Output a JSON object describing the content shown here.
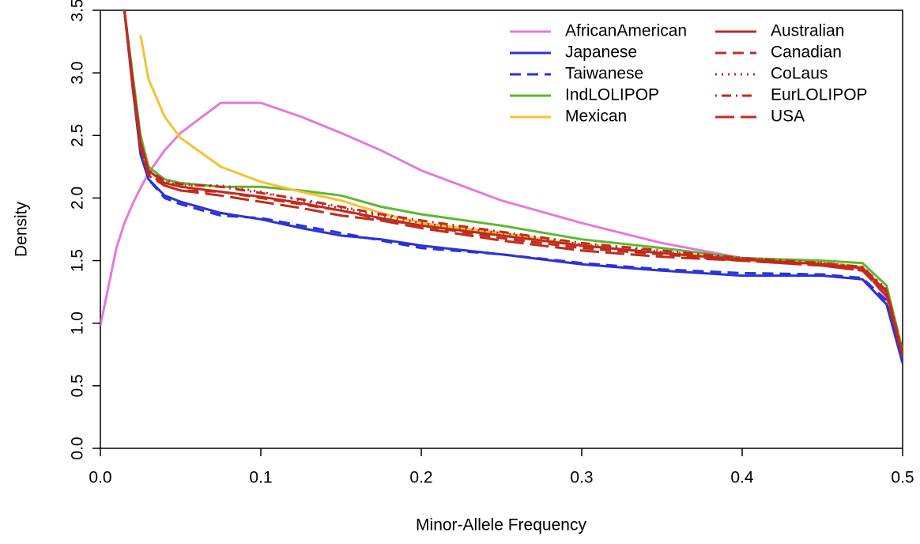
{
  "chart_data": {
    "type": "line",
    "xlabel": "Minor-Allele Frequency",
    "ylabel": "Density",
    "x": [
      0,
      0.01,
      0.015,
      0.02,
      0.025,
      0.03,
      0.04,
      0.05,
      0.075,
      0.1,
      0.125,
      0.15,
      0.175,
      0.2,
      0.25,
      0.3,
      0.35,
      0.4,
      0.45,
      0.475,
      0.49,
      0.5
    ],
    "xlim": [
      0,
      0.5
    ],
    "ylim": [
      0,
      3.5
    ],
    "xticks": [
      {
        "value": 0,
        "label": "0.0"
      },
      0.1,
      0.2,
      0.3,
      0.4,
      0.5
    ],
    "yticks": [
      {
        "value": 0,
        "label": "0.0"
      },
      0.5,
      {
        "value": 1,
        "label": "1.0"
      },
      1.5,
      {
        "value": 2,
        "label": "2.0"
      },
      2.5,
      {
        "value": 3,
        "label": "3.0"
      },
      3.5
    ],
    "legend": "top-right",
    "series": [
      {
        "name": "AfricanAmerican",
        "color": "#e37ad9",
        "dash": "solid",
        "values": [
          0.98,
          1.6,
          1.8,
          1.95,
          2.08,
          2.2,
          2.38,
          2.52,
          2.76,
          2.76,
          2.65,
          2.52,
          2.38,
          2.22,
          1.98,
          1.8,
          1.64,
          1.52,
          1.47,
          1.44,
          1.2,
          0.75
        ]
      },
      {
        "name": "Japanese",
        "color": "#2b32d6",
        "dash": "solid",
        "values": [
          null,
          null,
          3.5,
          2.9,
          2.35,
          2.15,
          2.02,
          1.97,
          1.88,
          1.83,
          1.76,
          1.7,
          1.67,
          1.62,
          1.55,
          1.47,
          1.42,
          1.38,
          1.38,
          1.35,
          1.15,
          0.68
        ]
      },
      {
        "name": "Taiwanese",
        "color": "#2b32d6",
        "dash": "dashed",
        "values": [
          null,
          null,
          3.5,
          2.95,
          2.4,
          2.15,
          2.0,
          1.95,
          1.86,
          1.84,
          1.78,
          1.72,
          1.66,
          1.6,
          1.55,
          1.48,
          1.43,
          1.4,
          1.39,
          1.36,
          1.18,
          0.7
        ]
      },
      {
        "name": "IndLOLIPOP",
        "color": "#5db830",
        "dash": "solid",
        "values": [
          null,
          null,
          3.5,
          3.0,
          2.5,
          2.25,
          2.15,
          2.12,
          2.09,
          2.09,
          2.06,
          2.02,
          1.93,
          1.87,
          1.78,
          1.67,
          1.6,
          1.52,
          1.5,
          1.48,
          1.3,
          0.78
        ]
      },
      {
        "name": "Mexican",
        "color": "#f4c232",
        "dash": "solid",
        "values": [
          null,
          null,
          null,
          null,
          3.3,
          2.95,
          2.65,
          2.48,
          2.25,
          2.13,
          2.05,
          1.98,
          1.88,
          1.8,
          1.72,
          1.62,
          1.56,
          1.5,
          1.48,
          1.45,
          1.25,
          0.75
        ]
      },
      {
        "name": "Australian",
        "color": "#c22a1c",
        "dash": "solid",
        "values": [
          null,
          null,
          3.5,
          2.95,
          2.45,
          2.22,
          2.12,
          2.09,
          2.05,
          2.01,
          1.96,
          1.9,
          1.84,
          1.78,
          1.7,
          1.62,
          1.56,
          1.51,
          1.47,
          1.44,
          1.25,
          0.75
        ]
      },
      {
        "name": "Canadian",
        "color": "#c22a1c",
        "dash": "dashed",
        "values": [
          null,
          null,
          3.5,
          2.9,
          2.4,
          2.2,
          2.1,
          2.06,
          2.05,
          2.0,
          1.95,
          1.9,
          1.83,
          1.78,
          1.68,
          1.6,
          1.55,
          1.5,
          1.46,
          1.42,
          1.23,
          0.74
        ]
      },
      {
        "name": "CoLaus",
        "color": "#c22a1c",
        "dash": "dotted",
        "values": [
          null,
          null,
          3.5,
          2.95,
          2.45,
          2.22,
          2.13,
          2.1,
          2.1,
          2.05,
          1.98,
          1.92,
          1.86,
          1.8,
          1.72,
          1.63,
          1.57,
          1.52,
          1.48,
          1.45,
          1.27,
          0.77
        ]
      },
      {
        "name": "EurLOLIPOP",
        "color": "#c22a1c",
        "dash": "dotdash",
        "values": [
          null,
          null,
          3.5,
          2.95,
          2.45,
          2.22,
          2.14,
          2.11,
          2.09,
          2.04,
          1.99,
          1.93,
          1.87,
          1.82,
          1.73,
          1.64,
          1.58,
          1.52,
          1.48,
          1.45,
          1.26,
          0.76
        ]
      },
      {
        "name": "USA",
        "color": "#c22a1c",
        "dash": "longdash",
        "values": [
          null,
          null,
          3.5,
          2.9,
          2.4,
          2.18,
          2.1,
          2.06,
          2.02,
          1.97,
          1.92,
          1.86,
          1.82,
          1.76,
          1.66,
          1.58,
          1.53,
          1.5,
          1.46,
          1.42,
          1.22,
          0.73
        ]
      }
    ]
  }
}
